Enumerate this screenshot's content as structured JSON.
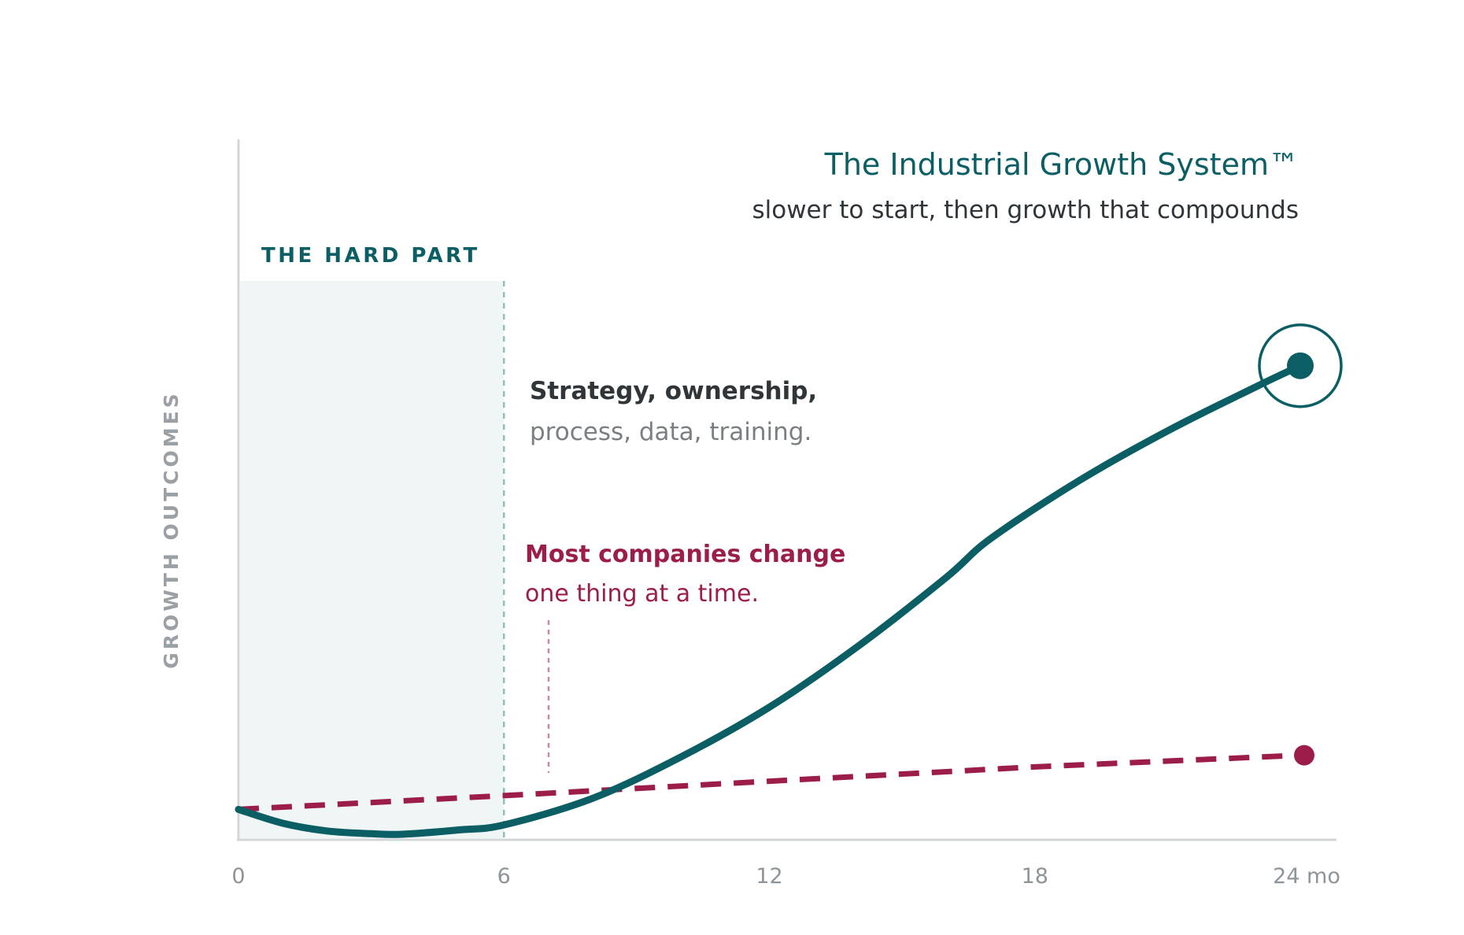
{
  "chart_data": {
    "type": "line",
    "title": "The Industrial Growth System™",
    "subtitle": "slower to start, then growth that compounds",
    "ylabel": "GROWTH OUTCOMES",
    "xlabel": "",
    "xlim": [
      0,
      24
    ],
    "ylim": [
      0,
      100
    ],
    "x_ticks": [
      {
        "value": 0,
        "label": "0"
      },
      {
        "value": 6,
        "label": "6"
      },
      {
        "value": 12,
        "label": "12"
      },
      {
        "value": 18,
        "label": "18"
      },
      {
        "value": 24,
        "label": "24 mo"
      }
    ],
    "shaded_region": {
      "x_start": 0,
      "x_end": 6,
      "label": "THE HARD PART",
      "color": "#f0f6f6"
    },
    "annotations": [
      {
        "line1": "Strategy, ownership,",
        "line2": "process, data, training."
      },
      {
        "line1": "Most companies change",
        "line2": "one thing at a time."
      }
    ],
    "series": [
      {
        "color": "#0b5e63",
        "style": "solid",
        "x": [
          0,
          1,
          2,
          3,
          3.7,
          5,
          6,
          8,
          10,
          12,
          14,
          16,
          17,
          19,
          21,
          23,
          24
        ],
        "y": [
          4.5,
          2,
          0.6,
          0.1,
          0,
          0.8,
          1.7,
          6.5,
          14,
          23,
          34,
          46.5,
          53.5,
          64,
          73,
          81,
          84.8
        ]
      },
      {
        "color": "#9c1d4a",
        "style": "dashed",
        "x": [
          0,
          6,
          12,
          18,
          24
        ],
        "y": [
          4.5,
          7,
          9.6,
          12.2,
          14.3
        ]
      }
    ],
    "grid": false,
    "legend": "none"
  }
}
